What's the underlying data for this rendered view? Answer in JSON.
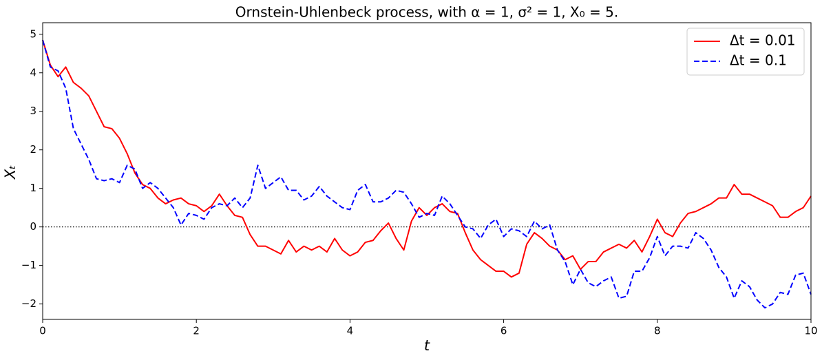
{
  "chart_data": {
    "type": "line",
    "title": "Ornstein-Uhlenbeck process, with α = 1, σ² = 1, X₀ = 5.",
    "xlabel": "t",
    "ylabel": "Xₜ",
    "x": [
      0,
      0.1,
      0.2,
      0.3,
      0.4,
      0.5,
      0.6,
      0.7,
      0.8,
      0.9,
      1,
      1.1,
      1.2,
      1.3,
      1.4,
      1.5,
      1.6,
      1.7,
      1.8,
      1.9,
      2,
      2.1,
      2.2,
      2.3,
      2.4,
      2.5,
      2.6,
      2.7,
      2.8,
      2.9,
      3,
      3.1,
      3.2,
      3.3,
      3.4,
      3.5,
      3.6,
      3.7,
      3.8,
      3.9,
      4,
      4.1,
      4.2,
      4.3,
      4.4,
      4.5,
      4.6,
      4.7,
      4.8,
      4.9,
      5,
      5.1,
      5.2,
      5.3,
      5.4,
      5.5,
      5.6,
      5.7,
      5.8,
      5.9,
      6,
      6.1,
      6.2,
      6.3,
      6.4,
      6.5,
      6.6,
      6.7,
      6.8,
      6.9,
      7,
      7.1,
      7.2,
      7.3,
      7.4,
      7.5,
      7.6,
      7.7,
      7.8,
      7.9,
      8,
      8.1,
      8.2,
      8.3,
      8.4,
      8.5,
      8.6,
      8.7,
      8.8,
      8.9,
      9,
      9.1,
      9.2,
      9.3,
      9.4,
      9.5,
      9.6,
      9.7,
      9.8,
      9.9,
      10
    ],
    "series": [
      {
        "name": "Δt = 0.01",
        "color": "#ff0000",
        "linestyle": "solid",
        "values": [
          4.85,
          4.2,
          3.9,
          4.15,
          3.75,
          3.6,
          3.4,
          3.0,
          2.6,
          2.55,
          2.3,
          1.9,
          1.4,
          1.1,
          1.0,
          0.75,
          0.6,
          0.7,
          0.75,
          0.6,
          0.55,
          0.4,
          0.55,
          0.85,
          0.55,
          0.3,
          0.25,
          -0.2,
          -0.5,
          -0.5,
          -0.6,
          -0.7,
          -0.35,
          -0.65,
          -0.5,
          -0.6,
          -0.5,
          -0.65,
          -0.3,
          -0.6,
          -0.75,
          -0.65,
          -0.4,
          -0.35,
          -0.1,
          0.1,
          -0.3,
          -0.6,
          0.15,
          0.5,
          0.3,
          0.5,
          0.6,
          0.4,
          0.35,
          -0.15,
          -0.6,
          -0.85,
          -1.0,
          -1.15,
          -1.15,
          -1.3,
          -1.2,
          -0.45,
          -0.15,
          -0.3,
          -0.5,
          -0.6,
          -0.85,
          -0.75,
          -1.1,
          -0.9,
          -0.9,
          -0.65,
          -0.55,
          -0.45,
          -0.55,
          -0.35,
          -0.65,
          -0.25,
          0.2,
          -0.15,
          -0.25,
          0.1,
          0.35,
          0.4,
          0.5,
          0.6,
          0.75,
          0.75,
          1.1,
          0.85,
          0.85,
          0.75,
          0.65,
          0.55,
          0.25,
          0.25,
          0.4,
          0.5,
          0.8
        ]
      },
      {
        "name": "Δt = 0.1",
        "color": "#0000ff",
        "linestyle": "dashed",
        "values": [
          4.85,
          4.15,
          4.05,
          3.6,
          2.55,
          2.15,
          1.75,
          1.25,
          1.2,
          1.25,
          1.15,
          1.6,
          1.5,
          1.0,
          1.15,
          1.0,
          0.75,
          0.5,
          0.05,
          0.35,
          0.3,
          0.2,
          0.5,
          0.6,
          0.55,
          0.75,
          0.5,
          0.75,
          1.6,
          1.0,
          1.15,
          1.3,
          0.95,
          0.95,
          0.7,
          0.8,
          1.05,
          0.8,
          0.65,
          0.5,
          0.45,
          0.95,
          1.1,
          0.65,
          0.65,
          0.75,
          0.95,
          0.9,
          0.6,
          0.25,
          0.35,
          0.3,
          0.8,
          0.6,
          0.3,
          0.0,
          -0.05,
          -0.3,
          0.05,
          0.2,
          -0.25,
          -0.05,
          -0.1,
          -0.25,
          0.15,
          -0.05,
          0.05,
          -0.6,
          -0.9,
          -1.5,
          -1.1,
          -1.45,
          -1.55,
          -1.4,
          -1.3,
          -1.85,
          -1.8,
          -1.15,
          -1.15,
          -0.8,
          -0.25,
          -0.75,
          -0.5,
          -0.5,
          -0.55,
          -0.15,
          -0.3,
          -0.6,
          -1.05,
          -1.3,
          -1.85,
          -1.4,
          -1.55,
          -1.9,
          -2.1,
          -2.0,
          -1.7,
          -1.75,
          -1.25,
          -1.2,
          -1.75
        ]
      }
    ],
    "hline": 0,
    "xlim": [
      0,
      10
    ],
    "ylim": [
      -2.4,
      5.3
    ],
    "xticks": [
      0,
      2,
      4,
      6,
      8,
      10
    ],
    "yticks": [
      {
        "value": -2,
        "label": "−2"
      },
      {
        "value": -1,
        "label": "−1"
      },
      0,
      1,
      2,
      3,
      4,
      5
    ],
    "legend": "upper right"
  }
}
